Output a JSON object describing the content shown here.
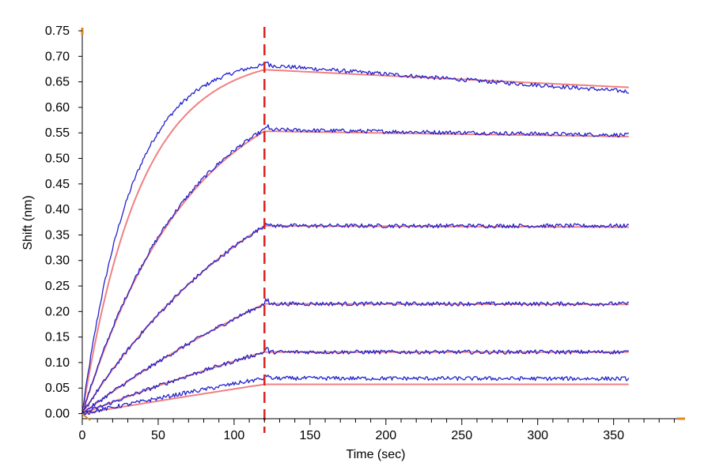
{
  "chart_data": {
    "type": "line",
    "xlabel": "Time (sec)",
    "ylabel": "Shift (nm)",
    "xlim": [
      0,
      395
    ],
    "ylim": [
      -0.01,
      0.75
    ],
    "x_ticks": [
      0,
      50,
      100,
      150,
      200,
      250,
      300,
      350
    ],
    "y_ticks": [
      0.0,
      0.05,
      0.1,
      0.15,
      0.2,
      0.25,
      0.3,
      0.35,
      0.4,
      0.45,
      0.5,
      0.55,
      0.6,
      0.65,
      0.7,
      0.75
    ],
    "x_tick_labels": [
      "0",
      "50",
      "100",
      "150",
      "200",
      "250",
      "300",
      "350"
    ],
    "y_tick_labels": [
      "0.00",
      "0.05",
      "0.10",
      "0.15",
      "0.20",
      "0.25",
      "0.30",
      "0.35",
      "0.40",
      "0.45",
      "0.50",
      "0.55",
      "0.60",
      "0.65",
      "0.70",
      "0.75"
    ],
    "association_end": 120,
    "dissociation_end": 360,
    "grid": false,
    "legend": "none",
    "colors": {
      "measured": "#2222cc",
      "fit": "#f08080",
      "marker_line": "#dd2020",
      "axis": "#000000",
      "axis_end_marks": "#e08a1e"
    },
    "series": [
      {
        "kind": "fit",
        "plateau": 0.705,
        "kon": 0.026,
        "koff": 0.00022
      },
      {
        "kind": "measured",
        "plateau": 0.7,
        "kon": 0.031,
        "koff": 0.00033,
        "noise": 0.004
      },
      {
        "kind": "fit",
        "plateau": 0.68,
        "kon": 0.014,
        "koff": 8e-05
      },
      {
        "kind": "measured",
        "plateau": 0.68,
        "kon": 0.0142,
        "koff": 8e-05,
        "noise": 0.004
      },
      {
        "kind": "fit",
        "plateau": 0.62,
        "kon": 0.0075,
        "koff": 3e-05
      },
      {
        "kind": "measured",
        "plateau": 0.62,
        "kon": 0.0075,
        "koff": 0.0,
        "noise": 0.004
      },
      {
        "kind": "fit",
        "plateau": 0.6,
        "kon": 0.0037,
        "koff": 2e-05
      },
      {
        "kind": "measured",
        "plateau": 0.6,
        "kon": 0.0037,
        "koff": 0.0,
        "noise": 0.004
      },
      {
        "kind": "fit",
        "plateau": 0.5,
        "kon": 0.0023,
        "koff": 0.0
      },
      {
        "kind": "measured",
        "plateau": 0.5,
        "kon": 0.0023,
        "koff": 0.0,
        "noise": 0.004
      },
      {
        "kind": "fit",
        "plateau": 0.56,
        "kon": 0.0009,
        "koff": 0.0
      },
      {
        "kind": "measured",
        "plateau": 0.56,
        "kon": 0.0011,
        "koff": 5e-05,
        "noise": 0.004
      }
    ]
  }
}
